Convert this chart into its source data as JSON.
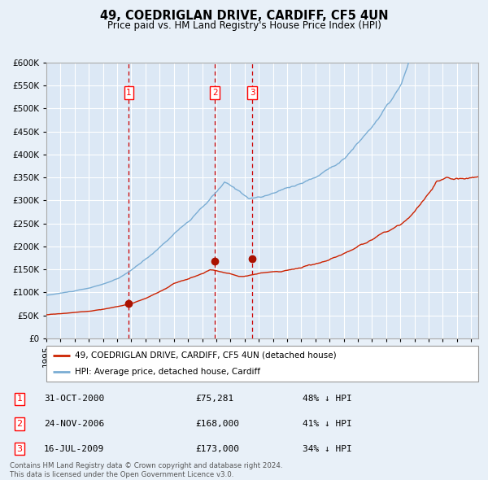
{
  "title": "49, COEDRIGLAN DRIVE, CARDIFF, CF5 4UN",
  "subtitle": "Price paid vs. HM Land Registry's House Price Index (HPI)",
  "bg_color": "#e8f0f8",
  "plot_bg_color": "#dce8f5",
  "grid_color": "#ffffff",
  "hpi_color": "#7aadd4",
  "price_color": "#cc2200",
  "sale_marker_color": "#aa1100",
  "dashed_line_color": "#cc0000",
  "sales": [
    {
      "label": "1",
      "date_num": 2000.83,
      "price": 75281,
      "date_str": "31-OCT-2000",
      "pct": "48% ↓ HPI"
    },
    {
      "label": "2",
      "date_num": 2006.9,
      "price": 168000,
      "date_str": "24-NOV-2006",
      "pct": "41% ↓ HPI"
    },
    {
      "label": "3",
      "date_num": 2009.54,
      "price": 173000,
      "date_str": "16-JUL-2009",
      "pct": "34% ↓ HPI"
    }
  ],
  "legend_label_price": "49, COEDRIGLAN DRIVE, CARDIFF, CF5 4UN (detached house)",
  "legend_label_hpi": "HPI: Average price, detached house, Cardiff",
  "footer": "Contains HM Land Registry data © Crown copyright and database right 2024.\nThis data is licensed under the Open Government Licence v3.0.",
  "ylim": [
    0,
    600000
  ],
  "yticks": [
    0,
    50000,
    100000,
    150000,
    200000,
    250000,
    300000,
    350000,
    400000,
    450000,
    500000,
    550000,
    600000
  ],
  "xlim_start": 1995.0,
  "xlim_end": 2025.5
}
